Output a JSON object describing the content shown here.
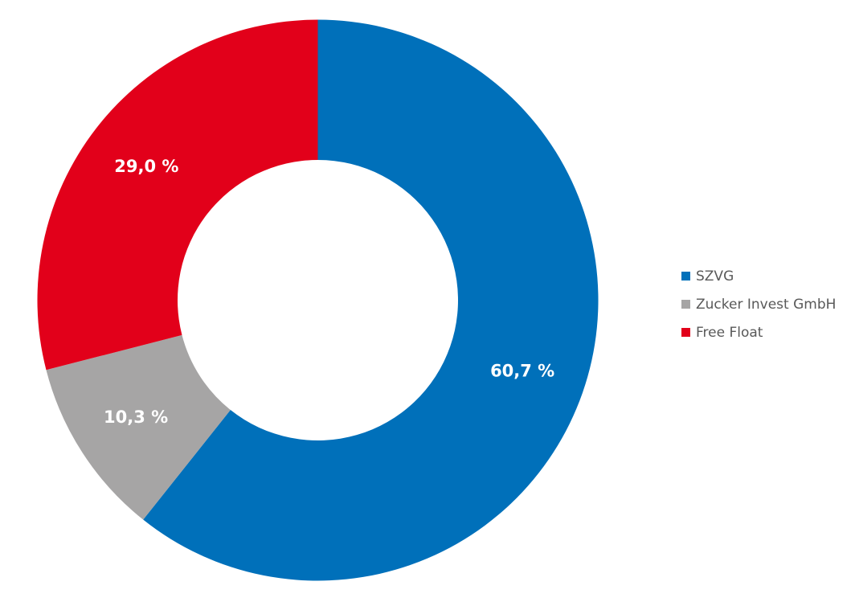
{
  "chart_data": {
    "type": "pie",
    "variant": "donut",
    "categories": [
      "SZVG",
      "Zucker Invest GmbH",
      "Free Float"
    ],
    "values": [
      60.7,
      10.3,
      29.0
    ],
    "value_labels": [
      "60,7 %",
      "10,3 %",
      "29,0 %"
    ],
    "colors": [
      "#0070BA",
      "#A6A5A5",
      "#E2001A"
    ],
    "legend_position": "right",
    "start_angle_deg": 0,
    "direction": "clockwise"
  }
}
